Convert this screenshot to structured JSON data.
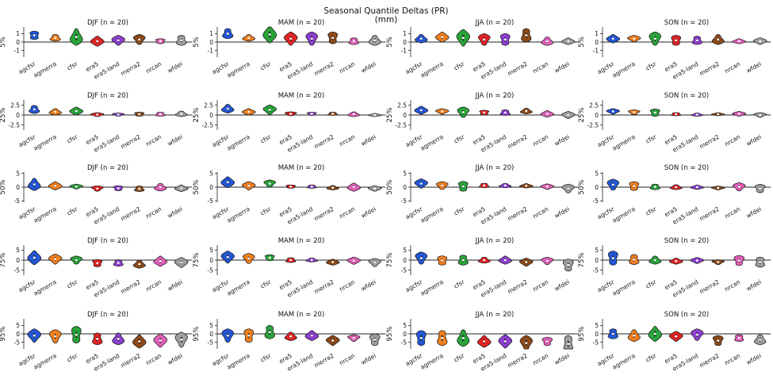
{
  "figure": {
    "title_line1": "Seasonal Quantile Deltas (PR)",
    "title_line2": "(mm)"
  },
  "chart_data": {
    "type": "violin",
    "categories": [
      "agcfsr",
      "agmerra",
      "cfsr",
      "era5",
      "era5-land",
      "merra2",
      "nrcan",
      "wfdei"
    ],
    "colors": [
      "#2457d6",
      "#f07f1f",
      "#2aa33a",
      "#e02424",
      "#8b3fd0",
      "#8c4a18",
      "#e060b8",
      "#9e9e9e"
    ],
    "seasons": [
      "DJF (n = 20)",
      "MAM (n = 20)",
      "JJA (n = 20)",
      "SON (n = 20)"
    ],
    "rows": [
      {
        "quantile": "5%",
        "ylim": [
          -1.8,
          1.8
        ],
        "yticks": [
          -1,
          0,
          1
        ],
        "panels": [
          {
            "medians": [
              0.8,
              0.5,
              0.6,
              0.1,
              0.2,
              0.3,
              0.1,
              0.2
            ],
            "spreads": [
              0.5,
              0.4,
              1.0,
              0.6,
              0.6,
              0.6,
              0.3,
              0.6
            ]
          },
          {
            "medians": [
              1.0,
              0.5,
              0.9,
              0.4,
              0.4,
              0.5,
              0.1,
              0.2
            ],
            "spreads": [
              0.6,
              0.4,
              1.0,
              0.8,
              0.8,
              0.7,
              0.4,
              0.6
            ]
          },
          {
            "medians": [
              0.4,
              0.6,
              0.5,
              0.3,
              0.3,
              0.8,
              0.1,
              0.1
            ],
            "spreads": [
              0.5,
              0.6,
              1.0,
              0.7,
              0.7,
              0.8,
              0.5,
              0.4
            ]
          },
          {
            "medians": [
              0.4,
              0.4,
              0.4,
              0.2,
              0.2,
              0.3,
              0.1,
              0.1
            ],
            "spreads": [
              0.5,
              0.4,
              0.8,
              0.6,
              0.5,
              0.6,
              0.3,
              0.4
            ]
          }
        ]
      },
      {
        "quantile": "25%",
        "ylim": [
          -3.8,
          3.8
        ],
        "yticks": [
          -2.5,
          0.0,
          2.5
        ],
        "panels": [
          {
            "medians": [
              1.4,
              0.8,
              1.0,
              0.1,
              0.1,
              0.2,
              0.2,
              0.3
            ],
            "spreads": [
              1.0,
              0.8,
              1.0,
              0.5,
              0.4,
              0.5,
              0.5,
              0.7
            ]
          },
          {
            "medians": [
              1.6,
              0.8,
              1.3,
              0.3,
              0.3,
              0.3,
              0.2,
              0.0
            ],
            "spreads": [
              1.1,
              0.8,
              1.2,
              0.5,
              0.4,
              0.4,
              0.6,
              0.4
            ]
          },
          {
            "medians": [
              1.2,
              0.9,
              0.7,
              0.6,
              0.6,
              1.0,
              0.3,
              0.0
            ],
            "spreads": [
              1.0,
              0.7,
              1.3,
              0.6,
              0.7,
              0.7,
              0.8,
              0.9
            ]
          },
          {
            "medians": [
              0.9,
              0.7,
              0.6,
              0.2,
              0.1,
              0.2,
              0.3,
              0.0
            ],
            "spreads": [
              0.7,
              0.6,
              0.9,
              0.4,
              0.4,
              0.4,
              0.6,
              0.6
            ]
          }
        ]
      },
      {
        "quantile": "50%",
        "ylim": [
          -5.5,
          5.5
        ],
        "yticks": [
          -5,
          0,
          5
        ],
        "panels": [
          {
            "medians": [
              1.0,
              0.5,
              0.2,
              -0.5,
              -0.4,
              -0.6,
              0.0,
              -0.4
            ],
            "spreads": [
              2.2,
              1.5,
              0.9,
              1.0,
              0.9,
              1.0,
              1.4,
              1.2
            ]
          },
          {
            "medians": [
              1.8,
              0.5,
              1.3,
              0.2,
              0.2,
              -0.2,
              0.0,
              -0.5
            ],
            "spreads": [
              2.0,
              1.5,
              1.3,
              0.6,
              0.6,
              0.8,
              1.5,
              1.0
            ]
          },
          {
            "medians": [
              1.3,
              0.6,
              0.3,
              0.6,
              0.6,
              0.5,
              0.2,
              -0.5
            ],
            "spreads": [
              1.7,
              1.4,
              1.8,
              0.8,
              0.8,
              0.8,
              1.0,
              1.6
            ]
          },
          {
            "medians": [
              0.9,
              0.4,
              0.1,
              0.0,
              0.0,
              -0.3,
              0.1,
              -0.5
            ],
            "spreads": [
              2.0,
              1.6,
              1.0,
              0.9,
              0.8,
              0.7,
              1.5,
              1.5
            ]
          }
        ]
      },
      {
        "quantile": "75%",
        "ylim": [
          -7.5,
          7.5
        ],
        "yticks": [
          -5,
          0,
          5
        ],
        "panels": [
          {
            "medians": [
              1.2,
              0.5,
              0.0,
              -1.5,
              -1.4,
              -2.0,
              -0.5,
              -1.2
            ],
            "spreads": [
              3.5,
              2.5,
              2.0,
              1.8,
              1.6,
              2.0,
              2.5,
              2.5
            ]
          },
          {
            "medians": [
              1.5,
              0.8,
              1.2,
              0.0,
              0.1,
              -1.0,
              -0.3,
              -1.2
            ],
            "spreads": [
              3.0,
              2.5,
              1.5,
              1.2,
              1.0,
              1.5,
              1.8,
              2.0
            ]
          },
          {
            "medians": [
              1.0,
              -0.2,
              0.0,
              0.0,
              0.0,
              -1.0,
              -0.4,
              -2.5
            ],
            "spreads": [
              3.0,
              2.3,
              2.5,
              1.5,
              2.0,
              2.0,
              1.8,
              3.0
            ]
          },
          {
            "medians": [
              1.0,
              0.3,
              0.0,
              -0.5,
              -0.2,
              -1.0,
              -0.2,
              -1.0
            ],
            "spreads": [
              3.5,
              2.5,
              2.0,
              1.5,
              1.5,
              1.2,
              2.5,
              2.5
            ]
          }
        ]
      },
      {
        "quantile": "95%",
        "ylim": [
          -9,
          9
        ],
        "yticks": [
          -5,
          0,
          5
        ],
        "panels": [
          {
            "medians": [
              -1.0,
              -1.5,
              -0.5,
              -3.0,
              -3.0,
              -4.5,
              -4.0,
              -3.5
            ],
            "spreads": [
              4.0,
              4.0,
              5.0,
              3.5,
              3.5,
              4.0,
              4.0,
              4.5
            ]
          },
          {
            "medians": [
              -1.0,
              -1.0,
              1.0,
              -1.5,
              -1.0,
              -4.0,
              -2.5,
              -3.5
            ],
            "spreads": [
              4.0,
              4.0,
              4.0,
              2.5,
              3.0,
              3.0,
              2.0,
              3.5
            ]
          },
          {
            "medians": [
              -2.5,
              -2.5,
              -2.5,
              -4.5,
              -4.5,
              -5.5,
              -4.5,
              -6.0
            ],
            "spreads": [
              4.5,
              4.5,
              5.0,
              3.5,
              4.0,
              4.5,
              2.5,
              5.0
            ]
          },
          {
            "medians": [
              0.0,
              -1.0,
              0.0,
              -1.5,
              -0.5,
              -4.0,
              -2.5,
              -3.5
            ],
            "spreads": [
              3.0,
              3.5,
              4.5,
              3.0,
              3.5,
              3.0,
              2.0,
              3.0
            ]
          }
        ]
      }
    ]
  }
}
